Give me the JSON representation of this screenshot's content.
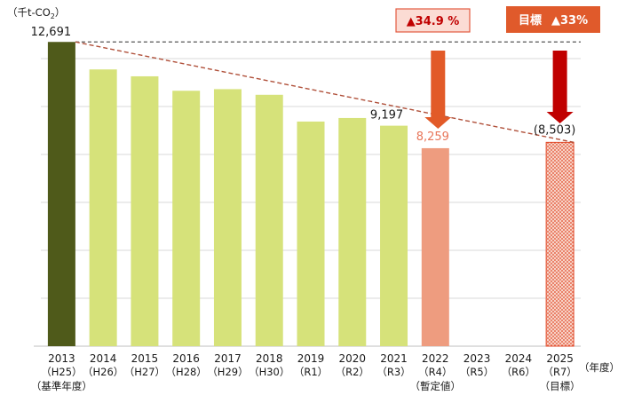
{
  "chart_data": {
    "type": "bar",
    "unit_label": "（千t-CO",
    "unit_sub": "2",
    "unit_close": "）",
    "x_unit": "（年度）",
    "categories": [
      {
        "year": "2013",
        "era": "（H25）",
        "note": "（基準年度）"
      },
      {
        "year": "2014",
        "era": "（H26）",
        "note": ""
      },
      {
        "year": "2015",
        "era": "（H27）",
        "note": ""
      },
      {
        "year": "2016",
        "era": "（H28）",
        "note": ""
      },
      {
        "year": "2017",
        "era": "（H29）",
        "note": ""
      },
      {
        "year": "2018",
        "era": "（H30）",
        "note": ""
      },
      {
        "year": "2019",
        "era": "（R1）",
        "note": ""
      },
      {
        "year": "2020",
        "era": "（R2）",
        "note": ""
      },
      {
        "year": "2021",
        "era": "（R3）",
        "note": ""
      },
      {
        "year": "2022",
        "era": "（R4）",
        "note": "（暫定値）"
      },
      {
        "year": "2023",
        "era": "（R5）",
        "note": ""
      },
      {
        "year": "2024",
        "era": "（R6）",
        "note": ""
      },
      {
        "year": "2025",
        "era": "（R7）",
        "note": "（目標）"
      }
    ],
    "values": [
      12691,
      11544,
      11257,
      10654,
      10722,
      10486,
      9370,
      9518,
      9197,
      8259,
      null,
      null,
      8503
    ],
    "value_labels": [
      "12,691",
      "",
      "",
      "",
      "",
      "",
      "",
      "",
      "9,197",
      "8,259",
      "",
      "",
      "(8,503)"
    ],
    "bar_kinds": [
      "base",
      "actual",
      "actual",
      "actual",
      "actual",
      "actual",
      "actual",
      "actual",
      "actual",
      "provisional",
      "none",
      "none",
      "target"
    ],
    "ylim": [
      0,
      12700
    ],
    "gridlines": 7,
    "reference_line": 12691,
    "trend_line": {
      "from_index": 0,
      "to_index": 12
    },
    "annotations": {
      "provisional_change": "▲34.9 %",
      "target_prefix": "目標",
      "target_change": "▲33%"
    },
    "colors": {
      "base": "#4f5a1a",
      "actual": "#d6e27a",
      "provisional": "#ee9c7f",
      "provisional_text": "#e8765a",
      "target_fill": "#f7d2c6",
      "target_dot": "#e24a2a",
      "arrow_orange": "#e25a28",
      "arrow_red": "#c00000",
      "annot_box_fill": "#fbdcd4",
      "annot_box_border": "#e35a40",
      "annot_text_red": "#c00000",
      "target_box_fill": "#e05a2b",
      "trend_line": "#b0503a",
      "grid": "#d9d9d9"
    }
  }
}
